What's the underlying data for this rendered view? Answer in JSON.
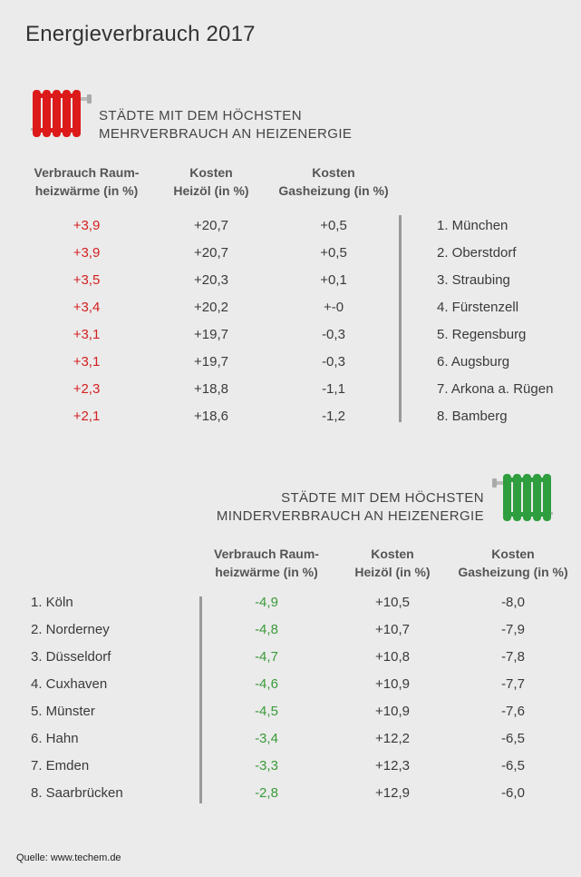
{
  "title": "Energieverbrauch 2017",
  "source": "Quelle: www.techem.de",
  "colors": {
    "increase": "#d42020",
    "decrease": "#3a9a3a",
    "radiator_red": "#dd1a1a",
    "radiator_green": "#2e9e3e"
  },
  "icons": {
    "top": "radiator-red-icon",
    "bottom": "radiator-green-icon"
  },
  "chart_data": [
    {
      "type": "table",
      "heading_line1": "STÄDTE MIT DEM HÖCHSTEN",
      "heading_line2": "MEHRVERBRAUCH AN HEIZENERGIE",
      "columns": [
        {
          "line1": "Verbrauch Raum-",
          "line2": "heizwärme (in %)"
        },
        {
          "line1": "Kosten",
          "line2": "Heizöl (in %)"
        },
        {
          "line1": "Kosten",
          "line2": "Gasheizung (in %)"
        }
      ],
      "rows": [
        {
          "verbrauch": "+3,9",
          "heizoel": "+20,7",
          "gas": "+0,5",
          "city": "1. München"
        },
        {
          "verbrauch": "+3,9",
          "heizoel": "+20,7",
          "gas": "+0,5",
          "city": "2. Oberstdorf"
        },
        {
          "verbrauch": "+3,5",
          "heizoel": "+20,3",
          "gas": "+0,1",
          "city": "3. Straubing"
        },
        {
          "verbrauch": "+3,4",
          "heizoel": "+20,2",
          "gas": "+-0",
          "city": "4. Fürstenzell"
        },
        {
          "verbrauch": "+3,1",
          "heizoel": "+19,7",
          "gas": "-0,3",
          "city": "5. Regensburg"
        },
        {
          "verbrauch": "+3,1",
          "heizoel": "+19,7",
          "gas": "-0,3",
          "city": "6. Augsburg"
        },
        {
          "verbrauch": "+2,3",
          "heizoel": "+18,8",
          "gas": "-1,1",
          "city": "7. Arkona a. Rügen"
        },
        {
          "verbrauch": "+2,1",
          "heizoel": "+18,6",
          "gas": "-1,2",
          "city": "8. Bamberg"
        }
      ]
    },
    {
      "type": "table",
      "heading_line1": "STÄDTE MIT DEM HÖCHSTEN",
      "heading_line2": "MINDERVERBRAUCH AN HEIZENERGIE",
      "columns": [
        {
          "line1": "Verbrauch Raum-",
          "line2": "heizwärme (in %)"
        },
        {
          "line1": "Kosten",
          "line2": "Heizöl (in %)"
        },
        {
          "line1": "Kosten",
          "line2": "Gasheizung (in %)"
        }
      ],
      "rows": [
        {
          "city": "1. Köln",
          "verbrauch": "-4,9",
          "heizoel": "+10,5",
          "gas": "-8,0"
        },
        {
          "city": "2. Norderney",
          "verbrauch": "-4,8",
          "heizoel": "+10,7",
          "gas": "-7,9"
        },
        {
          "city": "3. Düsseldorf",
          "verbrauch": "-4,7",
          "heizoel": "+10,8",
          "gas": "-7,8"
        },
        {
          "city": "4. Cuxhaven",
          "verbrauch": "-4,6",
          "heizoel": "+10,9",
          "gas": "-7,7"
        },
        {
          "city": "5. Münster",
          "verbrauch": "-4,5",
          "heizoel": "+10,9",
          "gas": "-7,6"
        },
        {
          "city": "6. Hahn",
          "verbrauch": "-3,4",
          "heizoel": "+12,2",
          "gas": "-6,5"
        },
        {
          "city": "7. Emden",
          "verbrauch": "-3,3",
          "heizoel": "+12,3",
          "gas": "-6,5"
        },
        {
          "city": "8. Saarbrücken",
          "verbrauch": "-2,8",
          "heizoel": "+12,9",
          "gas": "-6,0"
        }
      ]
    }
  ]
}
